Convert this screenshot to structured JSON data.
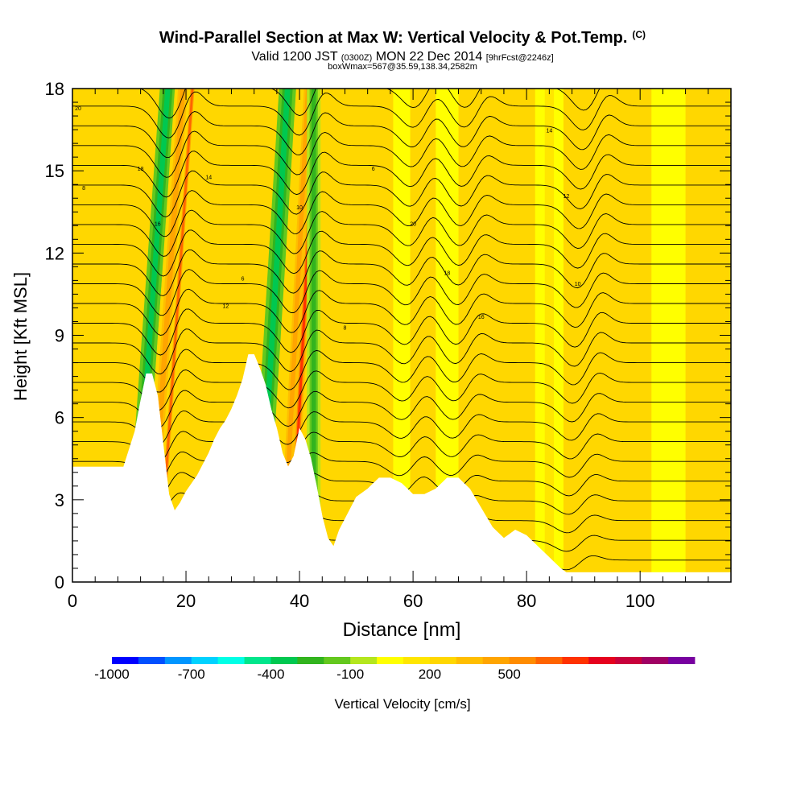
{
  "title": {
    "main": "Wind-Parallel Section at Max W: Vertical Velocity & Pot.Temp.",
    "copyright": "(C)",
    "valid_prefix": "Valid 1200 JST",
    "valid_utc": "(0300Z)",
    "valid_date": "MON 22 Dec 2014",
    "forecast": "[9hrFcst@2246z]",
    "box": "boxWmax=567@35.59,138.34,2582m"
  },
  "chart_data": {
    "type": "heatmap",
    "xlabel": "Distance [nm]",
    "ylabel": "Height [Kft MSL]",
    "xlim": [
      0,
      116
    ],
    "ylim": [
      0,
      18
    ],
    "x_ticks": [
      0,
      20,
      40,
      60,
      80,
      100
    ],
    "x_tick_labels": [
      "0",
      "20",
      "40",
      "60",
      "80",
      "100"
    ],
    "y_ticks": [
      0,
      3,
      6,
      9,
      12,
      15,
      18
    ],
    "y_tick_labels": [
      "0",
      "3",
      "6",
      "9",
      "12",
      "15",
      "18"
    ],
    "colorbar": {
      "label": "Vertical Velocity [cm/s]",
      "tick_labels": [
        "-1000",
        "-700",
        "-400",
        "-100",
        "200",
        "500"
      ],
      "colors": [
        "#0000ff",
        "#0050ff",
        "#0096ff",
        "#00d2ff",
        "#00ffe6",
        "#00e68c",
        "#00c850",
        "#32b41e",
        "#64c81e",
        "#b4e61e",
        "#ffff00",
        "#ffe600",
        "#ffd700",
        "#ffbe00",
        "#ffa500",
        "#ff8c00",
        "#ff6400",
        "#ff3200",
        "#e6001e",
        "#c8003c",
        "#a00064",
        "#7800a0"
      ]
    },
    "terrain": {
      "x": [
        0,
        9,
        11,
        12,
        13,
        14,
        15,
        16,
        17,
        18,
        19,
        20,
        21,
        22,
        23,
        24,
        25,
        26,
        27,
        28,
        29,
        30,
        31,
        32,
        33,
        34,
        35,
        36,
        37,
        38,
        39,
        40,
        41,
        42,
        43,
        44,
        45,
        46,
        47,
        48,
        49,
        50,
        52,
        54,
        56,
        58,
        60,
        62,
        64,
        66,
        68,
        70,
        72,
        74,
        76,
        78,
        80,
        82,
        84,
        86,
        87,
        116
      ],
      "h": [
        4.2,
        4.2,
        5.5,
        6.6,
        7.6,
        7.6,
        6.8,
        5.0,
        3.2,
        2.6,
        2.9,
        3.3,
        3.6,
        3.9,
        4.3,
        4.7,
        5.2,
        5.6,
        5.9,
        6.3,
        6.8,
        7.4,
        8.3,
        8.3,
        7.8,
        7.2,
        6.3,
        5.6,
        4.7,
        4.2,
        4.6,
        5.6,
        5.2,
        4.5,
        3.5,
        2.4,
        1.6,
        1.3,
        1.9,
        2.3,
        2.7,
        3.1,
        3.4,
        3.8,
        3.8,
        3.6,
        3.2,
        3.2,
        3.4,
        3.8,
        3.8,
        3.4,
        2.7,
        2.0,
        1.6,
        1.9,
        1.7,
        1.3,
        0.9,
        0.5,
        0.35,
        0.35
      ]
    },
    "velocity_bands": [
      {
        "x": 10.5,
        "slope": 0.35,
        "half_width": 1.4,
        "level": -350
      },
      {
        "x": 13.5,
        "slope": 0.33,
        "half_width": 1.4,
        "level": 450
      },
      {
        "x": 15.2,
        "slope": 0.33,
        "half_width": 0.6,
        "level": 600
      },
      {
        "x": 32.5,
        "slope": 0.3,
        "half_width": 1.5,
        "level": -350
      },
      {
        "x": 37.0,
        "slope": 0.25,
        "half_width": 1.2,
        "level": 450
      },
      {
        "x": 38.4,
        "slope": 0.25,
        "half_width": 0.7,
        "level": 700
      },
      {
        "x": 42.5,
        "slope": 0.0,
        "half_width": 1.2,
        "level": -250
      },
      {
        "x": 58.0,
        "slope": 0.0,
        "half_width": 1.5,
        "level": 80
      },
      {
        "x": 66.0,
        "slope": 0.0,
        "half_width": 2.0,
        "level": 60
      },
      {
        "x": 84.0,
        "slope": 0.0,
        "half_width": 2.5,
        "level": 100
      },
      {
        "x": 105.0,
        "slope": 0.0,
        "half_width": 3.0,
        "level": 80
      }
    ],
    "contour_labels": [
      "20",
      "18",
      "16",
      "14",
      "12",
      "10",
      "8",
      "6"
    ]
  }
}
